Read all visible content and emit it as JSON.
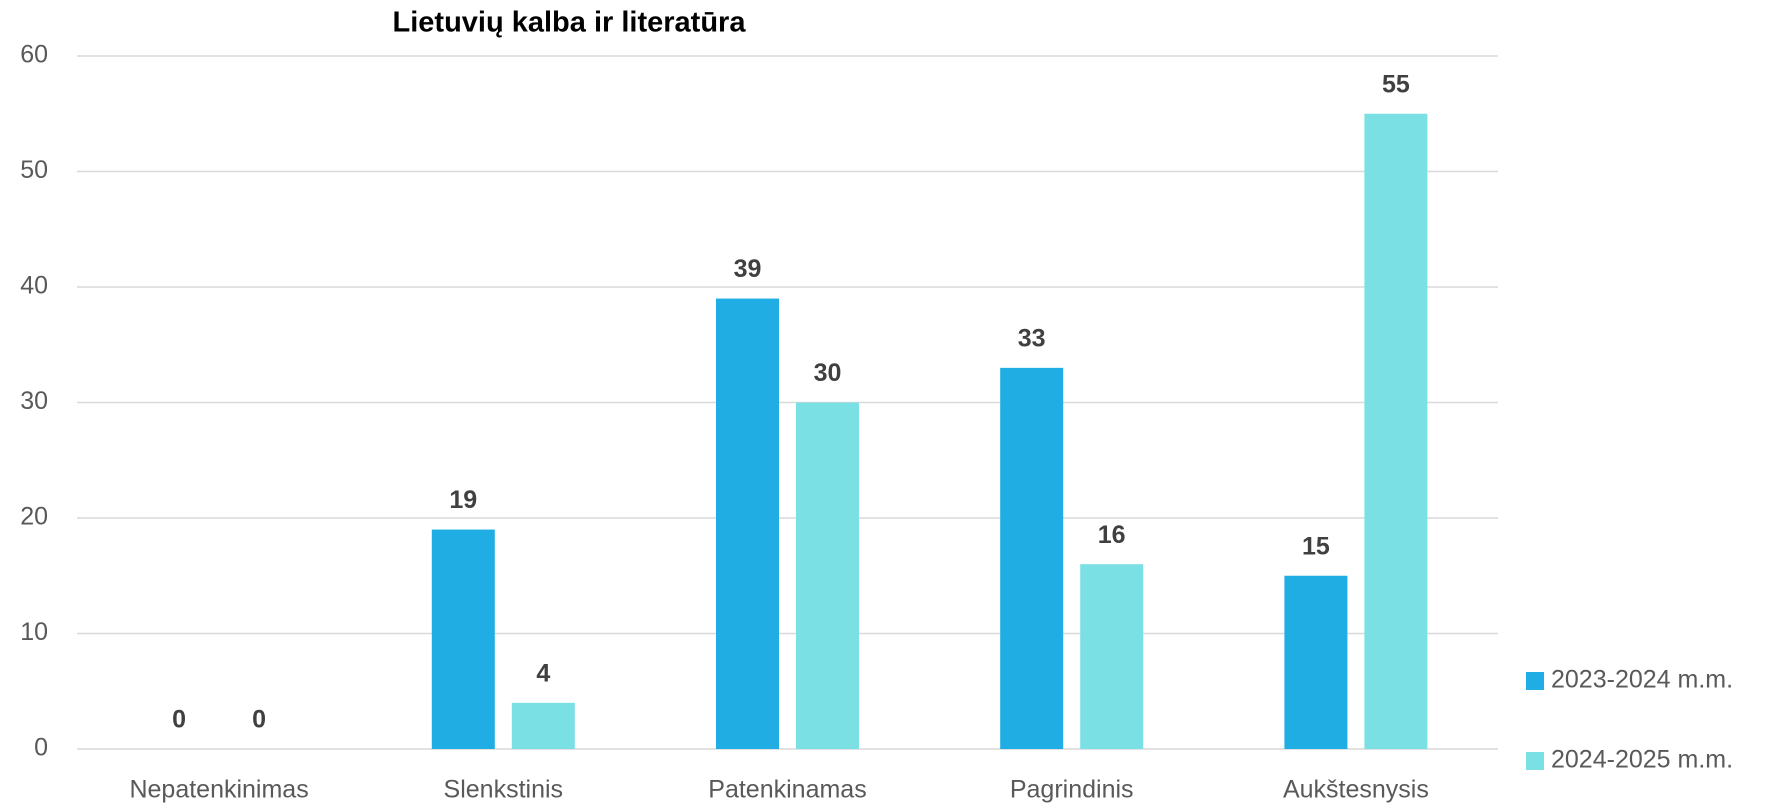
{
  "chart_data": {
    "type": "bar",
    "title": "Lietuvių kalba ir literatūra",
    "categories": [
      "Nepatenkinimas",
      "Slenkstinis",
      "Patenkinamas",
      "Pagrindinis",
      "Aukštesnysis"
    ],
    "series": [
      {
        "name": "2023-2024 m.m.",
        "color": "#1fade3",
        "values": [
          0,
          19,
          39,
          33,
          15
        ]
      },
      {
        "name": "2024-2025 m.m.",
        "color": "#7ae0e4",
        "values": [
          0,
          4,
          30,
          16,
          55
        ]
      }
    ],
    "ylim": [
      0,
      60
    ],
    "yticks": [
      0,
      10,
      20,
      30,
      40,
      50,
      60
    ],
    "grid": true,
    "legend": "right"
  }
}
